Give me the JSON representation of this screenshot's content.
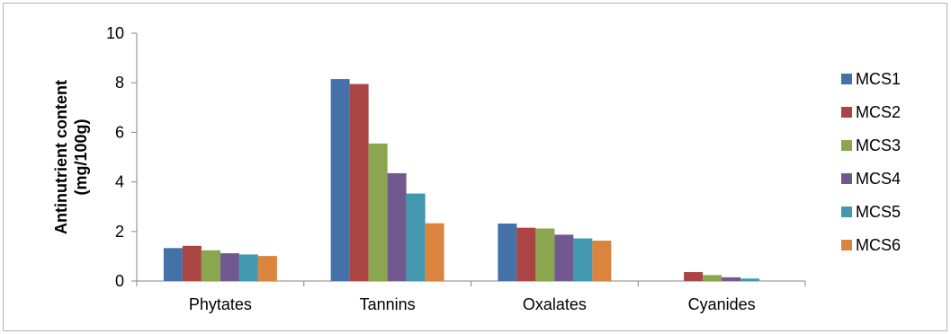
{
  "chart_data": {
    "type": "bar",
    "title": "",
    "xlabel": "",
    "ylabel_lines": [
      "Antinutrient content",
      "(mg/100g)"
    ],
    "ylim": [
      0,
      10
    ],
    "yticks": [
      0,
      2,
      4,
      6,
      8,
      10
    ],
    "grid": false,
    "legend_position": "right",
    "categories": [
      "Phytates",
      "Tannins",
      "Oxalates",
      "Cyanides"
    ],
    "series": [
      {
        "name": "MCS1",
        "color": "#4472A8",
        "values": [
          1.33,
          8.15,
          2.32,
          0
        ]
      },
      {
        "name": "MCS2",
        "color": "#AA4544",
        "values": [
          1.42,
          7.95,
          2.15,
          0.36
        ]
      },
      {
        "name": "MCS3",
        "color": "#8AA64E",
        "values": [
          1.24,
          5.55,
          2.12,
          0.24
        ]
      },
      {
        "name": "MCS4",
        "color": "#71588F",
        "values": [
          1.12,
          4.35,
          1.87,
          0.15
        ]
      },
      {
        "name": "MCS5",
        "color": "#4198AF",
        "values": [
          1.07,
          3.53,
          1.72,
          0.1
        ]
      },
      {
        "name": "MCS6",
        "color": "#DB843D",
        "values": [
          1.01,
          2.33,
          1.63,
          0
        ]
      }
    ]
  }
}
